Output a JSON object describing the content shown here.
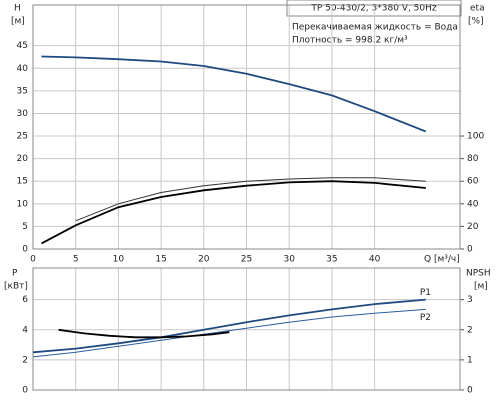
{
  "chart_data": [
    {
      "type": "line",
      "title": "TP 50-430/2, 3*380 V, 50Hz",
      "annotations": [
        "Перекачиваемая жидкость = Вода",
        "Плотность = 998.2 кг/м³"
      ],
      "ylabel": "H",
      "ylabel_unit": "[м]",
      "y2label": "eta",
      "y2label_unit": "[%]",
      "xlabel": "Q [м³/ч]",
      "x": [
        1,
        5,
        10,
        15,
        20,
        25,
        30,
        35,
        40,
        46
      ],
      "xlim": [
        0,
        50
      ],
      "xticks": [
        0,
        5,
        10,
        15,
        20,
        25,
        30,
        35,
        40
      ],
      "ylim": [
        0,
        54
      ],
      "yticks": [
        0,
        5,
        10,
        15,
        20,
        25,
        30,
        35,
        40,
        45
      ],
      "y2lim": [
        0,
        216
      ],
      "y2ticks": [
        0,
        20,
        40,
        60,
        80,
        100
      ],
      "grid": true,
      "series": [
        {
          "color": "#1f4a80",
          "width": 1.8,
          "values": [
            42.6,
            42.4,
            42,
            41.5,
            40.5,
            38.8,
            36.5,
            34,
            30.5,
            26
          ]
        },
        {
          "color": "#333333",
          "width": 1,
          "axis": "y2",
          "values": [
            null,
            25,
            40,
            50,
            56,
            60,
            62,
            63,
            63,
            60
          ]
        },
        {
          "color": "#000000",
          "width": 1.8,
          "axis": "y2",
          "values": [
            5,
            21,
            37,
            46,
            52,
            56,
            59,
            60,
            58.5,
            54
          ]
        }
      ]
    },
    {
      "type": "line",
      "ylabel": "P",
      "ylabel_unit": "[кВт]",
      "y2label": "NPSH",
      "y2label_unit": "[м]",
      "x": [
        0,
        5,
        10,
        15,
        20,
        25,
        30,
        35,
        40,
        46
      ],
      "xlim": [
        0,
        50
      ],
      "xticks": [
        0,
        5,
        10,
        15,
        20,
        25,
        30,
        35,
        40
      ],
      "ylim": [
        0,
        8.1
      ],
      "yticks": [
        0,
        2,
        4,
        6
      ],
      "y2lim": [
        0,
        4.05
      ],
      "y2ticks": [
        0,
        1,
        2,
        3
      ],
      "grid": true,
      "series": [
        {
          "name": "P1",
          "color": "#1f4a80",
          "width": 1.8,
          "values": [
            2.5,
            2.75,
            3.1,
            3.5,
            4.0,
            4.5,
            4.95,
            5.35,
            5.7,
            6.0
          ]
        },
        {
          "name": "P2",
          "color": "#2a5da0",
          "width": 1,
          "values": [
            2.2,
            2.5,
            2.9,
            3.3,
            3.7,
            4.1,
            4.5,
            4.85,
            5.1,
            5.35
          ]
        },
        {
          "color": "#000000",
          "width": 1.8,
          "axis": "y2",
          "x": [
            3,
            6,
            9,
            12,
            15,
            18,
            21,
            23
          ],
          "values": [
            2.0,
            1.88,
            1.8,
            1.75,
            1.75,
            1.78,
            1.85,
            1.92
          ]
        }
      ]
    }
  ]
}
